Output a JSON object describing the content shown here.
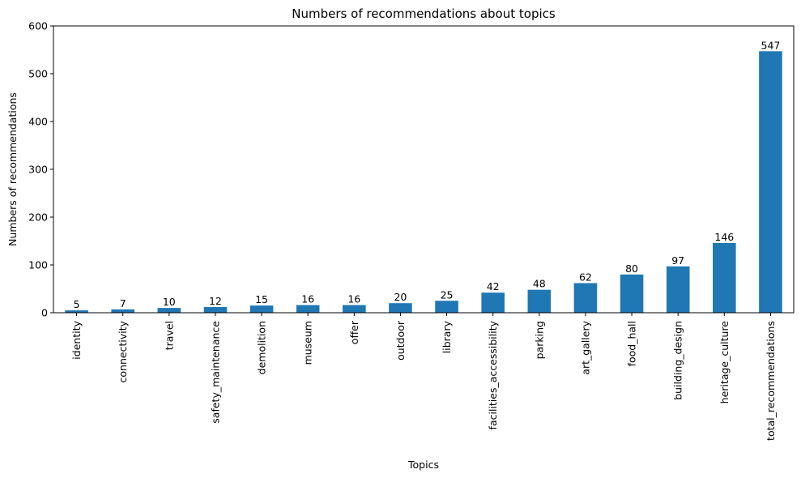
{
  "chart_data": {
    "type": "bar",
    "title": "Numbers of recommendations about topics",
    "xlabel": "Topics",
    "ylabel": "Numbers of recommendations",
    "ylim": [
      0,
      600
    ],
    "yticks": [
      0,
      100,
      200,
      300,
      400,
      500,
      600
    ],
    "grid": false,
    "bar_color": "#1f77b4",
    "categories": [
      "identity",
      "connectivity",
      "travel",
      "safety_maintenance",
      "demolition",
      "museum",
      "offer",
      "outdoor",
      "library",
      "facilities_accessibility",
      "parking",
      "art_gallery",
      "food_hall",
      "building_design",
      "heritage_culture",
      "total_recommendations"
    ],
    "values": [
      5,
      7,
      10,
      12,
      15,
      16,
      16,
      20,
      25,
      42,
      48,
      62,
      80,
      97,
      146,
      547
    ]
  }
}
